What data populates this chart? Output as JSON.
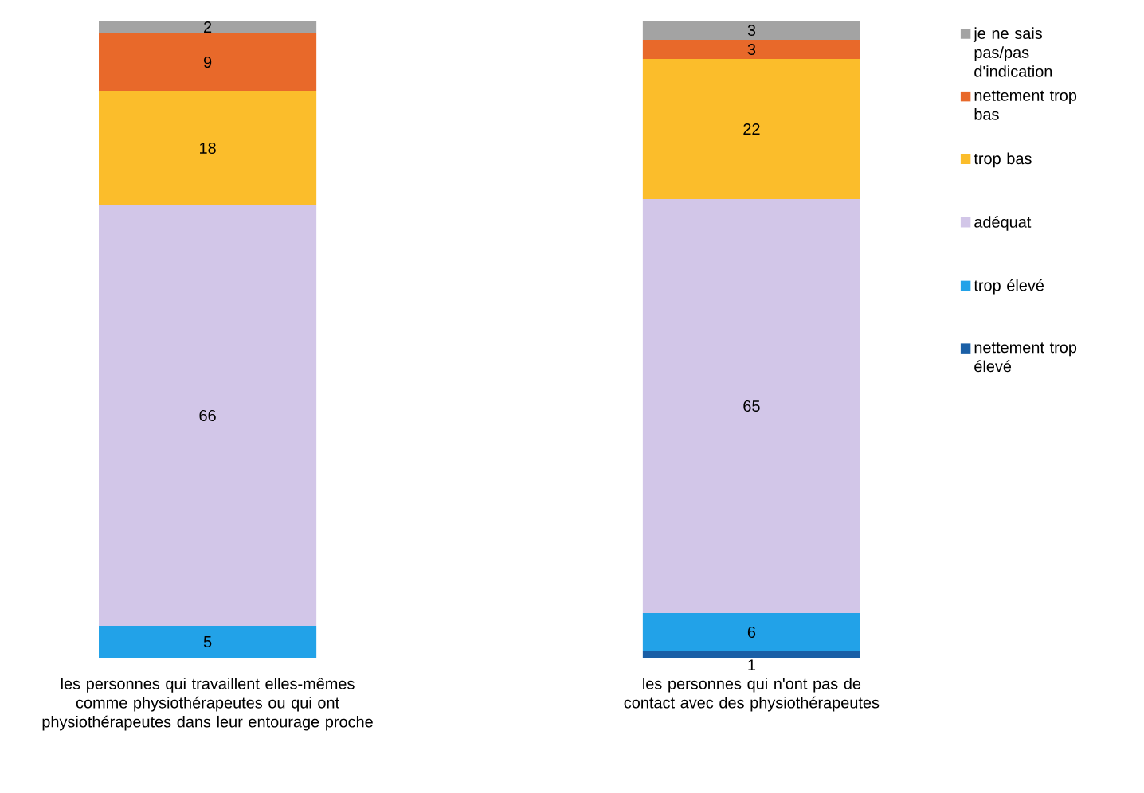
{
  "chart_data": {
    "type": "bar",
    "stacked": true,
    "categories": [
      "les personnes qui travaillent elles-mêmes comme physiothérapeutes ou qui ont physiothérapeutes dans leur entourage proche",
      "les personnes qui n'ont pas de contact avec des physiothérapeutes"
    ],
    "series": [
      {
        "name": "nettement trop élevé",
        "color": "#1a5fa6",
        "values": [
          null,
          1
        ]
      },
      {
        "name": "trop élevé",
        "color": "#22a2e8",
        "values": [
          5,
          6
        ]
      },
      {
        "name": "adéquat",
        "color": "#d2c6e8",
        "values": [
          66,
          65
        ]
      },
      {
        "name": "trop bas",
        "color": "#fbbd2b",
        "values": [
          18,
          22
        ]
      },
      {
        "name": "nettement trop bas",
        "color": "#e8692a",
        "values": [
          9,
          3
        ]
      },
      {
        "name": "je ne sais pas/pas d'indication",
        "color": "#a3a3a3",
        "values": [
          2,
          3
        ]
      }
    ],
    "tick_labels": "x",
    "legend": "right",
    "data_labels": true
  }
}
